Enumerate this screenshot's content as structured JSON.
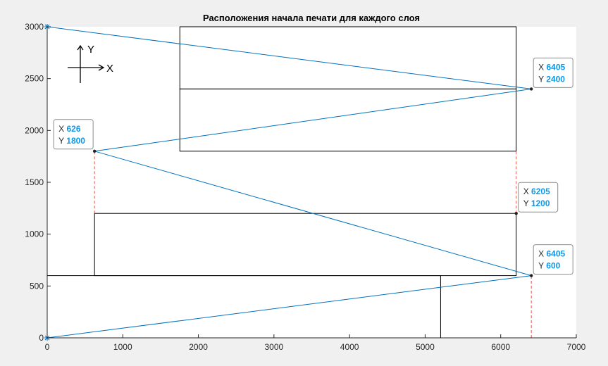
{
  "chart_data": {
    "type": "line",
    "title": "Расположения начала печати для каждого слоя",
    "xlabel": "",
    "ylabel": "",
    "xlim": [
      0,
      7000
    ],
    "ylim": [
      0,
      3000
    ],
    "x_ticks": [
      0,
      1000,
      2000,
      3000,
      4000,
      5000,
      6000,
      7000
    ],
    "y_ticks": [
      0,
      500,
      1000,
      1500,
      2000,
      2500,
      3000
    ],
    "grid": false,
    "legend": "none",
    "colors": {
      "path": "#0072bd",
      "rect": "#000000",
      "dashed": "#e8554a",
      "value": "#0d97e6",
      "plot_bg": "#ffffff",
      "figure_bg": "#f0f0f0"
    },
    "series": [
      {
        "marker": "asterisk-at-ends",
        "x": [
          0,
          6405,
          626,
          6405,
          0
        ],
        "y": [
          3000,
          2400,
          1800,
          600,
          0
        ]
      }
    ],
    "rectangles": [
      {
        "x1": 0,
        "y1": 0,
        "x2": 5205,
        "y2": 600
      },
      {
        "x1": 626,
        "y1": 600,
        "x2": 6205,
        "y2": 1200
      },
      {
        "x1": 1755,
        "y1": 1800,
        "x2": 6205,
        "y2": 2400
      },
      {
        "x1": 1755,
        "y1": 2400,
        "x2": 6205,
        "y2": 3000
      }
    ],
    "dashed_lines": [
      {
        "x": 626,
        "y1": 1200,
        "y2": 1800
      },
      {
        "x": 6205,
        "y1": 1200,
        "y2": 1800
      },
      {
        "x": 6405,
        "y1": 0,
        "y2": 600
      }
    ],
    "points": [
      {
        "x": 6405,
        "y": 2400
      },
      {
        "x": 626,
        "y": 1800
      },
      {
        "x": 6205,
        "y": 1200
      },
      {
        "x": 6405,
        "y": 600
      }
    ],
    "datatips": [
      {
        "x_key": "X",
        "y_key": "Y",
        "x": "6405",
        "y": "2400",
        "side": "right-above"
      },
      {
        "x_key": "X",
        "y_key": "Y",
        "x": "626",
        "y": "1800",
        "side": "left-above"
      },
      {
        "x_key": "X",
        "y_key": "Y",
        "x": "6205",
        "y": "1200",
        "side": "right-above"
      },
      {
        "x_key": "X",
        "y_key": "Y",
        "x": "6405",
        "y": "600",
        "side": "right-above"
      }
    ],
    "axis_indicator": {
      "x_label": "X",
      "y_label": "Y"
    }
  }
}
